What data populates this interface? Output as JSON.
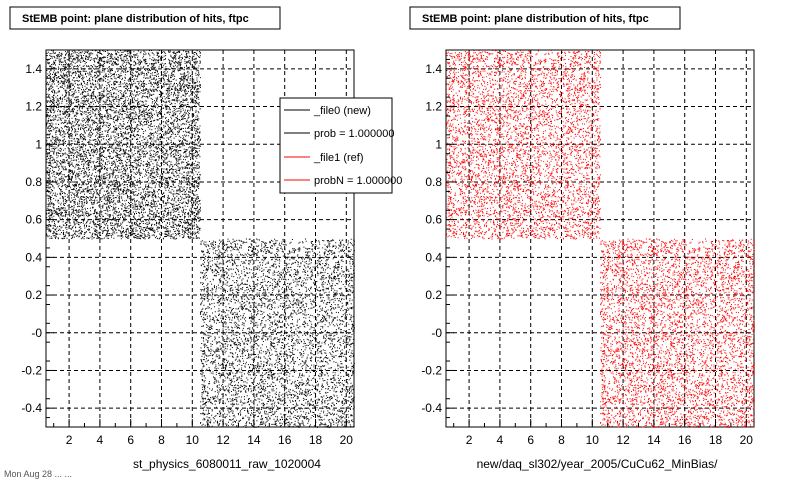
{
  "footer_text": "Mon Aug 28 ... ...",
  "chart_data": [
    {
      "type": "scatter",
      "title": "StEMB point: plane distribution of hits, ftpc",
      "xlabel": "st_physics_6080011_raw_1020004",
      "ylabel": "",
      "xlim": [
        0.5,
        20.5
      ],
      "ylim": [
        -0.5,
        1.5
      ],
      "xticks": [
        "2",
        "4",
        "6",
        "8",
        "10",
        "12",
        "14",
        "16",
        "18",
        "20"
      ],
      "xtick_values": [
        2,
        4,
        6,
        8,
        10,
        12,
        14,
        16,
        18,
        20
      ],
      "yticks": [
        "-0.4",
        "-0.2",
        "-0",
        "0.2",
        "0.4",
        "0.6",
        "0.8",
        "1",
        "1.2",
        "1.4"
      ],
      "ytick_values": [
        -0.4,
        -0.2,
        0,
        0.2,
        0.4,
        0.6,
        0.8,
        1,
        1.2,
        1.4
      ],
      "grid": true,
      "point_color": "#000000",
      "series": [
        {
          "x_range": [
            0.5,
            10.5
          ],
          "y_range": [
            0.5,
            1.5
          ]
        },
        {
          "x_range": [
            10.5,
            20.5
          ],
          "y_range": [
            -0.5,
            0.5
          ]
        }
      ],
      "legend": {
        "placement": "top-right",
        "entries": [
          {
            "label": "_file0 (new)",
            "color": "#000000"
          },
          {
            "label": "prob = 1.000000",
            "color": "#000000"
          },
          {
            "label": "_file1 (ref)",
            "color": "#ff0000"
          },
          {
            "label": "probN = 1.000000",
            "color": "#ff0000"
          }
        ]
      }
    },
    {
      "type": "scatter",
      "title": "StEMB point: plane distribution of hits, ftpc",
      "xlabel": "new/daq_sl302/year_2005/CuCu62_MinBias/",
      "ylabel": "",
      "xlim": [
        0.5,
        20.5
      ],
      "ylim": [
        -0.5,
        1.5
      ],
      "xticks": [
        "2",
        "4",
        "6",
        "8",
        "10",
        "12",
        "14",
        "16",
        "18",
        "20"
      ],
      "xtick_values": [
        2,
        4,
        6,
        8,
        10,
        12,
        14,
        16,
        18,
        20
      ],
      "yticks": [
        "-0.4",
        "-0.2",
        "-0",
        "0.2",
        "0.4",
        "0.6",
        "0.8",
        "1",
        "1.2",
        "1.4"
      ],
      "ytick_values": [
        -0.4,
        -0.2,
        0,
        0.2,
        0.4,
        0.6,
        0.8,
        1,
        1.2,
        1.4
      ],
      "grid": true,
      "point_color": "#ff0000",
      "series": [
        {
          "x_range": [
            0.5,
            10.5
          ],
          "y_range": [
            0.5,
            1.5
          ]
        },
        {
          "x_range": [
            10.5,
            20.5
          ],
          "y_range": [
            -0.5,
            0.5
          ]
        }
      ]
    }
  ]
}
